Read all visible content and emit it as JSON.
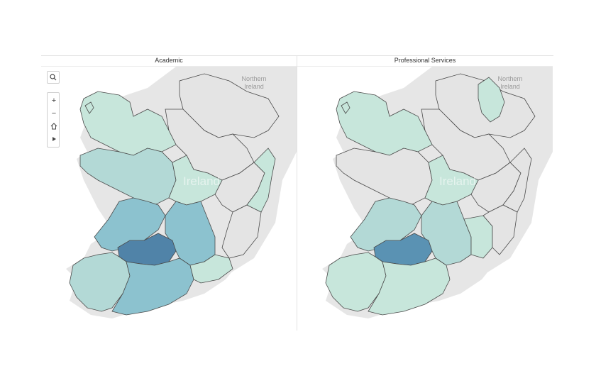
{
  "panels": [
    {
      "title": "Academic",
      "labels": {
        "northern_ireland_line1": "Northern",
        "northern_ireland_line2": "Ireland",
        "ireland": "Ireland"
      }
    },
    {
      "title": "Professional Services",
      "labels": {
        "northern_ireland_line1": "Northern",
        "northern_ireland_line2": "Ireland",
        "ireland": "Ireland"
      }
    }
  ],
  "toolbar": {
    "search_icon": "search-icon",
    "zoom_in_icon": "plus-icon",
    "zoom_out_icon": "minus-icon",
    "home_icon": "home-icon",
    "pan_icon": "play-icon"
  },
  "colors": {
    "no_data": "#e4e4e4",
    "land_base": "#eaeaea",
    "lightest": "#c7e6db",
    "light": "#b3d9d6",
    "medium": "#8cc2cf",
    "dark": "#5083a8",
    "border": "#4a4a4a"
  }
}
